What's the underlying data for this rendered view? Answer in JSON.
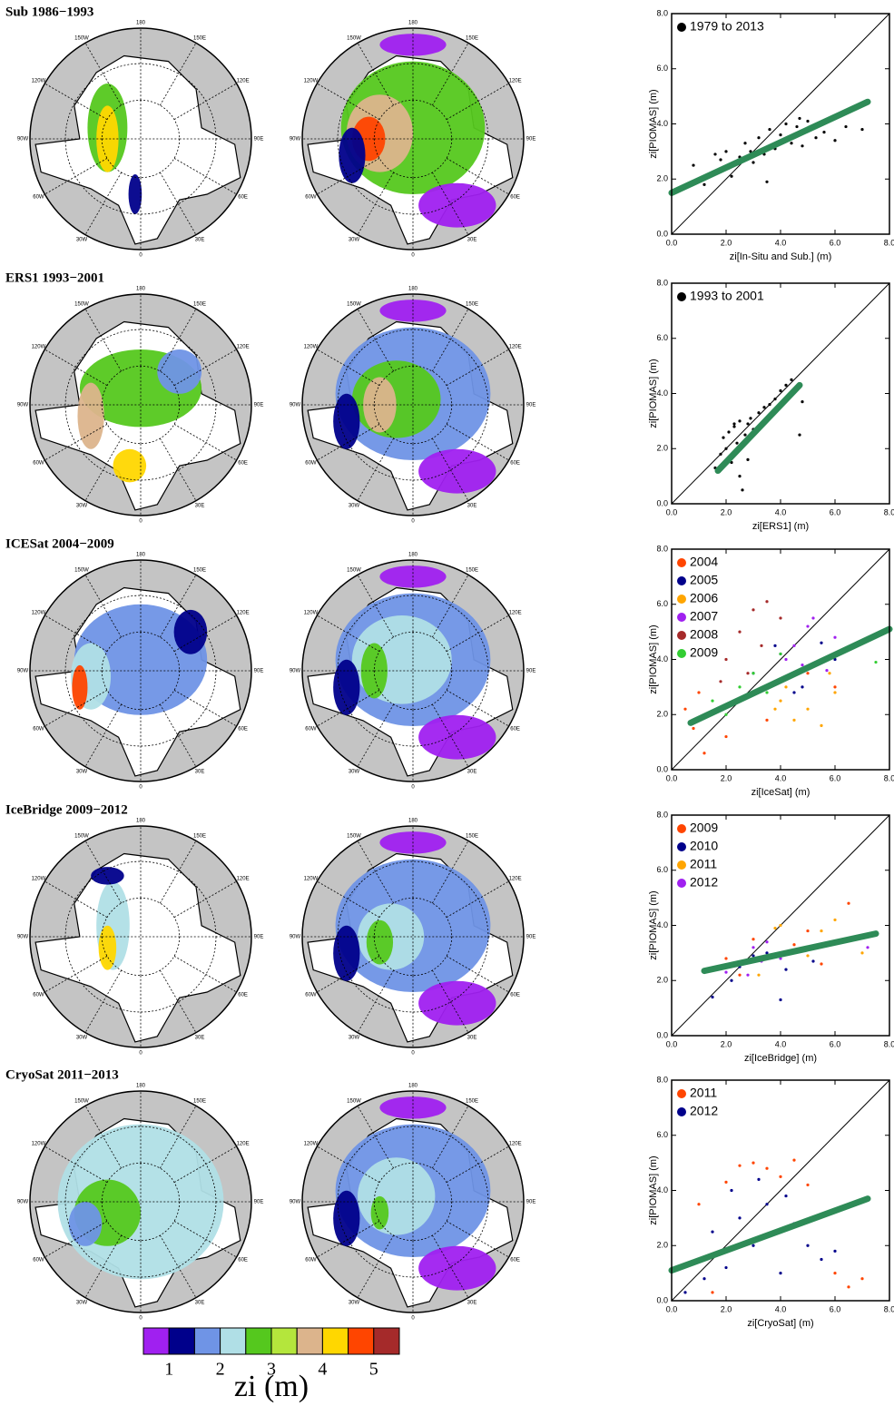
{
  "panels": [
    {
      "title": "Sub 1986−1993"
    },
    {
      "title": "ERS1 1993−2001"
    },
    {
      "title": "ICESat 2004−2009"
    },
    {
      "title": "IceBridge 2009−2012"
    },
    {
      "title": "CryoSat 2011−2013"
    }
  ],
  "map_labels": [
    "180",
    "150W",
    "120W",
    "90W",
    "60W",
    "30W",
    "0",
    "30E",
    "60E",
    "90E",
    "120E",
    "150E"
  ],
  "colorbar": {
    "colors": [
      "#a020f0",
      "#00008b",
      "#6f94e6",
      "#b0dfe6",
      "#55c81e",
      "#b4e63c",
      "#dcb48c",
      "#ffd700",
      "#ff4500",
      "#a52a2a"
    ],
    "lim": [
      0.5,
      5.5
    ],
    "ticks": [
      1,
      2,
      3,
      4,
      5
    ],
    "label": "zi (m)"
  },
  "chart_data": [
    {
      "type": "scatter",
      "xlabel": "zi[In-Situ and Sub.] (m)",
      "ylabel": "zi[PIOMAS] (m)",
      "xlim": [
        0,
        8
      ],
      "ylim": [
        0,
        8
      ],
      "xticks": [
        {
          "value": 0,
          "label": "0.0"
        },
        {
          "value": 2,
          "label": "2.0"
        },
        {
          "value": 4,
          "label": "4.0"
        },
        {
          "value": 6,
          "label": "6.0"
        },
        {
          "value": 8,
          "label": "8.0"
        }
      ],
      "yticks": [
        {
          "value": 0,
          "label": "0.0"
        },
        {
          "value": 2,
          "label": "2.0"
        },
        {
          "value": 4,
          "label": "4.0"
        },
        {
          "value": 6,
          "label": "6.0"
        },
        {
          "value": 8,
          "label": "8.0"
        }
      ],
      "series": [
        {
          "name": "1979 to 2013",
          "color": "#000000",
          "x": [
            0.8,
            1.2,
            1.5,
            1.8,
            2.0,
            2.2,
            2.5,
            2.7,
            3.0,
            3.2,
            3.4,
            3.6,
            3.8,
            4.0,
            4.2,
            4.4,
            4.6,
            4.8,
            5.0,
            5.3,
            5.6,
            6.0,
            6.4,
            7.0,
            2.1,
            2.9,
            3.5,
            4.1,
            1.6,
            4.7
          ],
          "y": [
            2.5,
            1.8,
            2.2,
            2.7,
            3.0,
            2.1,
            2.8,
            3.3,
            2.6,
            3.5,
            2.9,
            3.8,
            3.1,
            3.6,
            4.0,
            3.3,
            3.9,
            3.2,
            4.1,
            3.5,
            3.7,
            3.4,
            3.9,
            3.8,
            2.4,
            3.0,
            1.9,
            3.4,
            2.9,
            4.2
          ]
        }
      ],
      "fit": {
        "color": "#2e8b57",
        "x": [
          0,
          7.2
        ],
        "y": [
          1.5,
          4.8
        ]
      }
    },
    {
      "type": "scatter",
      "xlabel": "zi[ERS1] (m)",
      "ylabel": "zi[PIOMAS] (m)",
      "xlim": [
        0,
        8
      ],
      "ylim": [
        0,
        8
      ],
      "xticks": [
        {
          "value": 0,
          "label": "0.0"
        },
        {
          "value": 2,
          "label": "2.0"
        },
        {
          "value": 4,
          "label": "4.0"
        },
        {
          "value": 6,
          "label": "6.0"
        },
        {
          "value": 8,
          "label": "8.0"
        }
      ],
      "yticks": [
        {
          "value": 0,
          "label": "0.0"
        },
        {
          "value": 2,
          "label": "2.0"
        },
        {
          "value": 4,
          "label": "4.0"
        },
        {
          "value": 6,
          "label": "6.0"
        },
        {
          "value": 8,
          "label": "8.0"
        }
      ],
      "series": [
        {
          "name": "1993 to 2001",
          "color": "#000000",
          "x": [
            1.6,
            1.8,
            1.9,
            2.0,
            2.1,
            2.2,
            2.3,
            2.4,
            2.5,
            2.6,
            2.7,
            2.8,
            2.9,
            3.0,
            3.2,
            3.4,
            3.6,
            3.8,
            4.0,
            4.2,
            4.4,
            4.6,
            2.5,
            2.8,
            2.3,
            4.7,
            4.8
          ],
          "y": [
            1.3,
            1.8,
            2.4,
            2.0,
            2.6,
            1.5,
            2.8,
            2.2,
            3.0,
            0.5,
            2.5,
            2.9,
            3.1,
            2.7,
            3.3,
            3.5,
            3.6,
            3.8,
            4.1,
            4.3,
            4.5,
            4.2,
            1.0,
            1.6,
            2.9,
            2.5,
            3.7
          ]
        }
      ],
      "fit": {
        "color": "#2e8b57",
        "x": [
          1.7,
          4.7
        ],
        "y": [
          1.2,
          4.3
        ]
      }
    },
    {
      "type": "scatter",
      "xlabel": "zi[IceSat] (m)",
      "ylabel": "zi[PIOMAS] (m)",
      "xlim": [
        0,
        8
      ],
      "ylim": [
        0,
        8
      ],
      "xticks": [
        {
          "value": 0,
          "label": "0.0"
        },
        {
          "value": 2,
          "label": "2.0"
        },
        {
          "value": 4,
          "label": "4.0"
        },
        {
          "value": 6,
          "label": "6.0"
        },
        {
          "value": 8,
          "label": "8.0"
        }
      ],
      "yticks": [
        {
          "value": 0,
          "label": "0.0"
        },
        {
          "value": 2,
          "label": "2.0"
        },
        {
          "value": 4,
          "label": "4.0"
        },
        {
          "value": 6,
          "label": "6.0"
        },
        {
          "value": 8,
          "label": "8.0"
        }
      ],
      "series": [
        {
          "name": "2004",
          "color": "#ff4500",
          "x": [
            0.5,
            0.8,
            1.2,
            2.0,
            3.5,
            5.0,
            6.0,
            1.0
          ],
          "y": [
            2.2,
            1.5,
            0.6,
            1.2,
            1.8,
            3.5,
            3.0,
            2.8
          ]
        },
        {
          "name": "2005",
          "color": "#00008b",
          "x": [
            3.0,
            4.0,
            4.8,
            5.5,
            6.0,
            5.2,
            4.5,
            3.8
          ],
          "y": [
            3.5,
            4.2,
            3.0,
            4.6,
            4.0,
            3.8,
            2.8,
            4.5
          ]
        },
        {
          "name": "2006",
          "color": "#ffa500",
          "x": [
            4.0,
            4.5,
            5.0,
            5.5,
            6.0,
            4.2,
            5.8,
            3.8
          ],
          "y": [
            2.5,
            1.8,
            2.2,
            1.6,
            2.8,
            3.0,
            3.5,
            2.2
          ]
        },
        {
          "name": "2007",
          "color": "#a020f0",
          "x": [
            4.5,
            5.0,
            5.5,
            4.8,
            5.2,
            6.0,
            4.2,
            5.7
          ],
          "y": [
            4.5,
            5.2,
            4.0,
            3.8,
            5.5,
            4.8,
            4.0,
            3.6
          ]
        },
        {
          "name": "2008",
          "color": "#a52a2a",
          "x": [
            2.0,
            2.5,
            3.0,
            3.5,
            4.0,
            2.8,
            3.3,
            1.8
          ],
          "y": [
            4.0,
            5.0,
            5.8,
            6.1,
            5.5,
            3.5,
            4.5,
            3.2
          ]
        },
        {
          "name": "2009",
          "color": "#32cd32",
          "x": [
            1.0,
            1.5,
            2.0,
            2.5,
            3.0,
            3.5,
            4.0,
            7.5
          ],
          "y": [
            1.8,
            2.5,
            2.0,
            3.0,
            3.5,
            2.8,
            4.2,
            3.9
          ]
        }
      ],
      "fit": {
        "color": "#2e8b57",
        "x": [
          0.7,
          8
        ],
        "y": [
          1.7,
          5.1
        ]
      }
    },
    {
      "type": "scatter",
      "xlabel": "zi[IceBridge] (m)",
      "ylabel": "zi[PIOMAS] (m)",
      "xlim": [
        0,
        8
      ],
      "ylim": [
        0,
        8
      ],
      "xticks": [
        {
          "value": 0,
          "label": "0.0"
        },
        {
          "value": 2,
          "label": "2.0"
        },
        {
          "value": 4,
          "label": "4.0"
        },
        {
          "value": 6,
          "label": "6.0"
        },
        {
          "value": 8,
          "label": "8.0"
        }
      ],
      "yticks": [
        {
          "value": 0,
          "label": "0.0"
        },
        {
          "value": 2,
          "label": "2.0"
        },
        {
          "value": 4,
          "label": "4.0"
        },
        {
          "value": 6,
          "label": "6.0"
        },
        {
          "value": 8,
          "label": "8.0"
        }
      ],
      "series": [
        {
          "name": "2009",
          "color": "#ff4500",
          "x": [
            2.0,
            3.0,
            4.0,
            5.0,
            6.5,
            5.5,
            2.5,
            4.5
          ],
          "y": [
            2.8,
            3.5,
            3.0,
            3.8,
            4.8,
            2.6,
            2.2,
            3.3
          ]
        },
        {
          "name": "2010",
          "color": "#00008b",
          "x": [
            1.5,
            2.5,
            3.5,
            4.2,
            4.0,
            3.0,
            5.2,
            2.2
          ],
          "y": [
            1.4,
            2.5,
            3.0,
            2.4,
            1.3,
            2.9,
            2.7,
            2.0
          ]
        },
        {
          "name": "2011",
          "color": "#ffa500",
          "x": [
            3.8,
            5.5,
            6.0,
            4.5,
            3.2,
            7.0,
            5.0,
            4.0
          ],
          "y": [
            3.9,
            3.8,
            4.2,
            3.1,
            2.2,
            3.0,
            2.9,
            4.0
          ]
        },
        {
          "name": "2012",
          "color": "#a020f0",
          "x": [
            2.0,
            2.5,
            3.0,
            3.5,
            4.0,
            2.8,
            3.3,
            7.2
          ],
          "y": [
            2.3,
            2.6,
            3.2,
            3.4,
            2.8,
            2.2,
            2.7,
            3.2
          ]
        }
      ],
      "fit": {
        "color": "#2e8b57",
        "x": [
          1.2,
          7.5
        ],
        "y": [
          2.35,
          3.7
        ]
      }
    },
    {
      "type": "scatter",
      "xlabel": "zi[CryoSat] (m)",
      "ylabel": "zi[PIOMAS] (m)",
      "xlim": [
        0,
        8
      ],
      "ylim": [
        0,
        8
      ],
      "xticks": [
        {
          "value": 0,
          "label": "0.0"
        },
        {
          "value": 2,
          "label": "2.0"
        },
        {
          "value": 4,
          "label": "4.0"
        },
        {
          "value": 6,
          "label": "6.0"
        },
        {
          "value": 8,
          "label": "8.0"
        }
      ],
      "yticks": [
        {
          "value": 0,
          "label": "0.0"
        },
        {
          "value": 2,
          "label": "2.0"
        },
        {
          "value": 4,
          "label": "4.0"
        },
        {
          "value": 6,
          "label": "6.0"
        },
        {
          "value": 8,
          "label": "8.0"
        }
      ],
      "series": [
        {
          "name": "2011",
          "color": "#ff4500",
          "x": [
            1.0,
            2.0,
            3.0,
            3.5,
            4.0,
            5.0,
            6.5,
            7.0,
            1.5,
            2.5,
            4.5,
            6.0
          ],
          "y": [
            3.5,
            4.3,
            5.0,
            4.8,
            4.5,
            4.2,
            0.5,
            0.8,
            0.3,
            4.9,
            5.1,
            1.0
          ]
        },
        {
          "name": "2012",
          "color": "#00008b",
          "x": [
            0.5,
            1.0,
            1.5,
            2.0,
            2.5,
            3.0,
            3.5,
            4.0,
            4.5,
            5.0,
            5.5,
            6.0,
            2.2,
            3.2,
            4.2,
            1.2
          ],
          "y": [
            0.3,
            1.5,
            2.5,
            1.2,
            3.0,
            2.0,
            3.5,
            1.0,
            2.8,
            2.0,
            1.5,
            1.8,
            4.0,
            4.4,
            3.8,
            0.8
          ]
        }
      ],
      "fit": {
        "color": "#2e8b57",
        "x": [
          0,
          7.2
        ],
        "y": [
          1.1,
          3.7
        ]
      }
    }
  ]
}
